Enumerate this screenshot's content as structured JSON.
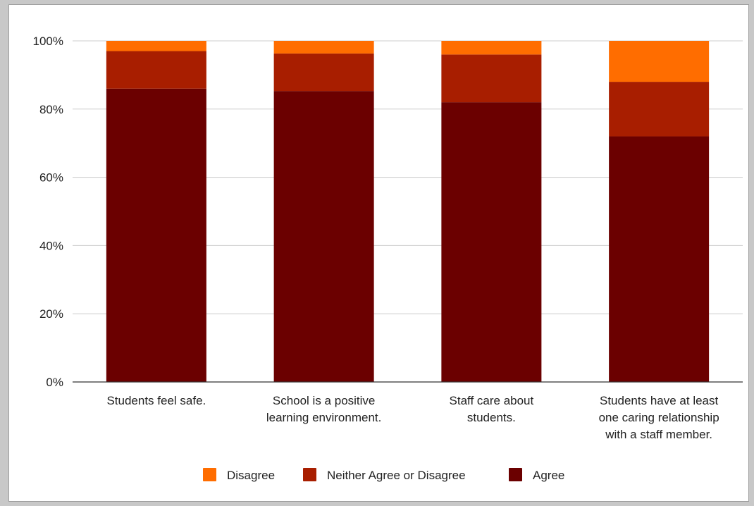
{
  "chart_data": {
    "type": "bar",
    "stacked": true,
    "categories": [
      [
        "Students feel safe."
      ],
      [
        "School is a positive",
        "learning environment."
      ],
      [
        "Staff care about",
        "students."
      ],
      [
        "Students have at least",
        "one caring relationship",
        "with a staff member."
      ]
    ],
    "series": [
      {
        "name": "Agree",
        "color": "#6b0000",
        "values": [
          86,
          85.3,
          82,
          72
        ]
      },
      {
        "name": "Neither Agree or Disagree",
        "color": "#a81e00",
        "values": [
          11,
          11,
          14,
          16
        ]
      },
      {
        "name": "Disagree",
        "color": "#ff6d00",
        "values": [
          3,
          3.7,
          4,
          12
        ]
      }
    ],
    "legend_order": [
      "Disagree",
      "Neither Agree or Disagree",
      "Agree"
    ],
    "yticks": [
      "0%",
      "20%",
      "40%",
      "60%",
      "80%",
      "100%"
    ],
    "ylim": [
      0,
      100
    ],
    "grid": true,
    "legend_position": "bottom"
  }
}
